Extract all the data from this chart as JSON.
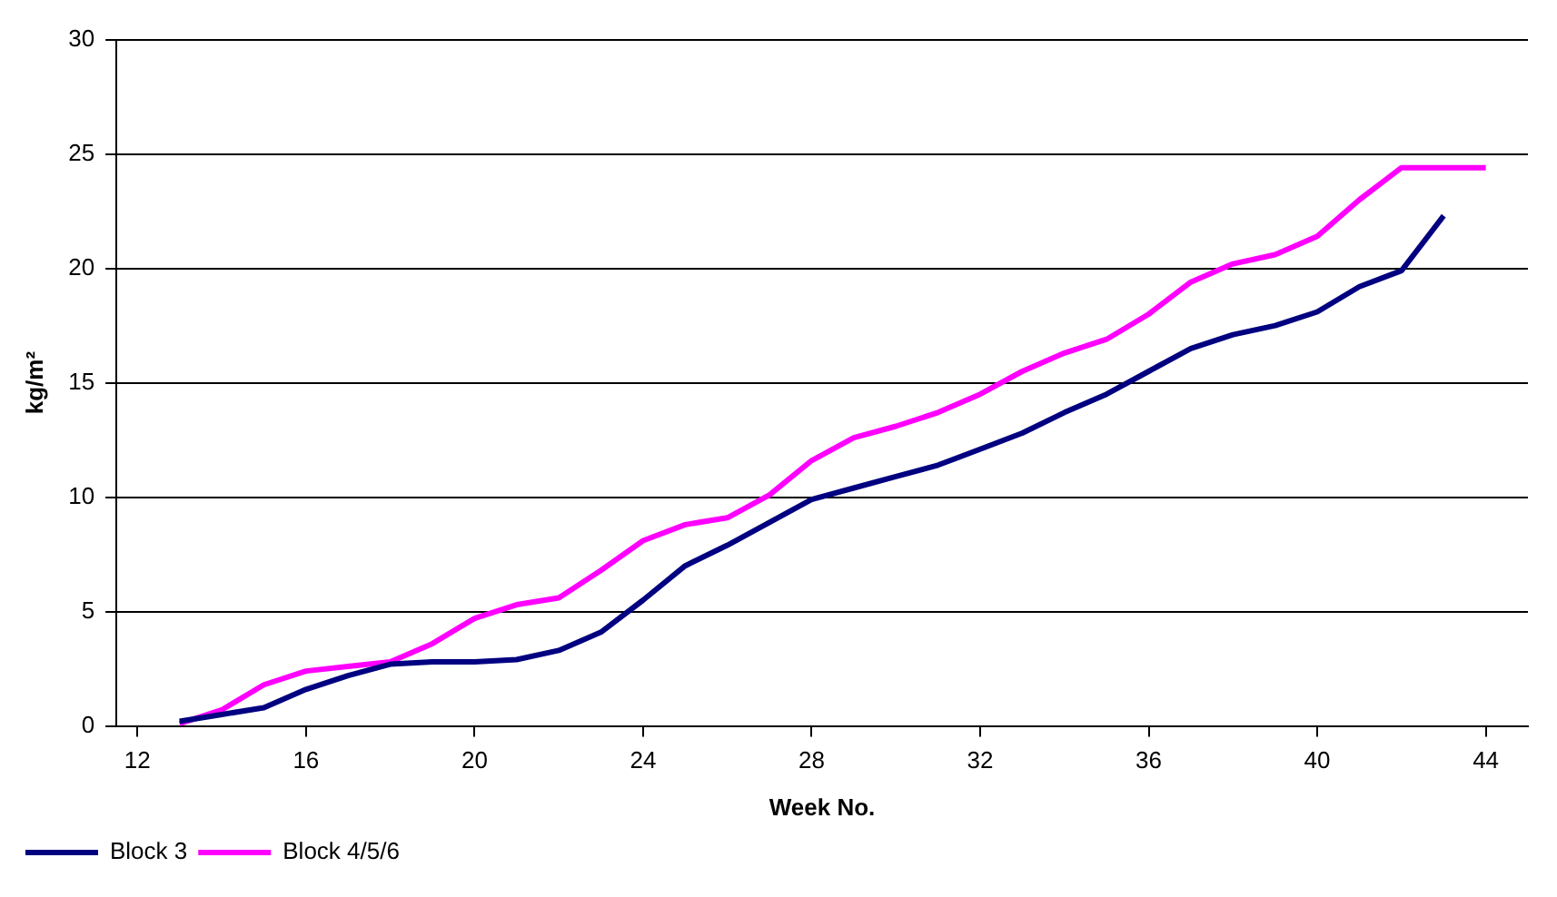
{
  "chart_data": {
    "type": "line",
    "xlabel": "Week No.",
    "ylabel": "kg/m²",
    "x": [
      13,
      14,
      15,
      16,
      17,
      18,
      19,
      20,
      21,
      22,
      23,
      24,
      25,
      26,
      27,
      28,
      29,
      30,
      31,
      32,
      33,
      34,
      35,
      36,
      37,
      38,
      39,
      40,
      41,
      42,
      43,
      44
    ],
    "series": [
      {
        "name": "Block 3",
        "color": "#000080",
        "values": [
          0.2,
          0.5,
          0.8,
          1.6,
          2.2,
          2.7,
          2.8,
          2.8,
          2.9,
          3.3,
          4.1,
          5.5,
          7.0,
          7.9,
          8.9,
          9.9,
          10.4,
          10.9,
          11.4,
          12.1,
          12.8,
          13.7,
          14.5,
          15.5,
          16.5,
          17.1,
          17.5,
          18.1,
          19.2,
          19.9,
          22.3,
          null
        ]
      },
      {
        "name": "Block 4/5/6",
        "color": "#ff00ff",
        "values": [
          0.1,
          0.7,
          1.8,
          2.4,
          2.6,
          2.8,
          3.6,
          4.7,
          5.3,
          5.6,
          6.8,
          8.1,
          8.8,
          9.1,
          10.1,
          11.6,
          12.6,
          13.1,
          13.7,
          14.5,
          15.5,
          16.3,
          16.9,
          18.0,
          19.4,
          20.2,
          20.6,
          21.4,
          23.0,
          24.4,
          24.4,
          24.4
        ]
      }
    ],
    "xlim": [
      11.5,
      45
    ],
    "xticks": [
      12,
      16,
      20,
      24,
      28,
      32,
      36,
      40,
      44
    ],
    "ylim": [
      0,
      30
    ],
    "yticks": [
      0,
      5,
      10,
      15,
      20,
      25,
      30
    ],
    "grid": "y",
    "legend": "bottom left",
    "marker": "none",
    "line_style": "solid"
  }
}
